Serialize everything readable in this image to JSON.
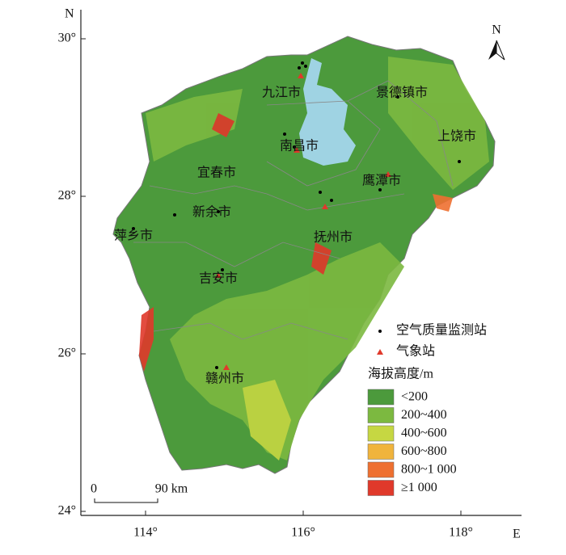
{
  "map": {
    "axis_north": "N",
    "axis_east": "E",
    "north_arrow": "N",
    "lat_ticks": [
      {
        "value": 30,
        "label": "30°"
      },
      {
        "value": 28,
        "label": "28°"
      },
      {
        "value": 26,
        "label": "26°"
      },
      {
        "value": 24,
        "label": "24°"
      }
    ],
    "lon_ticks": [
      {
        "value": 114,
        "label": "114°"
      },
      {
        "value": 116,
        "label": "116°"
      },
      {
        "value": 118,
        "label": "118°"
      }
    ],
    "cities": [
      "九江市",
      "景德镇市",
      "南昌市",
      "上饶市",
      "宜春市",
      "鹰潭市",
      "新余市",
      "萍乡市",
      "抚州市",
      "吉安市",
      "赣州市"
    ],
    "legend": {
      "air_station": "空气质量监测站",
      "weather_station": "气象站",
      "elevation_title": "海拔高度/m",
      "classes": [
        {
          "label": "<200",
          "color": "#4c9a3c"
        },
        {
          "label": "200~400",
          "color": "#7cb940"
        },
        {
          "label": "400~600",
          "color": "#c6d742"
        },
        {
          "label": "600~800",
          "color": "#f0b43c"
        },
        {
          "label": "800~1 000",
          "color": "#ee7030"
        },
        {
          "label": "≥1 000",
          "color": "#e0392b"
        }
      ]
    },
    "scale_bar": {
      "start": "0",
      "end": "90 km"
    }
  }
}
